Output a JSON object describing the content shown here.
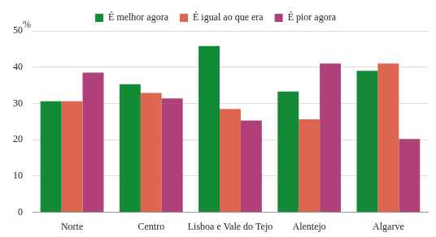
{
  "chart_data": {
    "type": "bar",
    "y_label": "%",
    "categories": [
      "Norte",
      "Centro",
      "Lisboa e Vale do Tejo",
      "Alentejo",
      "Algarve"
    ],
    "series": [
      {
        "name": "É melhor agora",
        "color": "#138a36",
        "values": [
          30.6,
          35.3,
          45.8,
          33.3,
          39.0
        ]
      },
      {
        "name": "É igual ao que era",
        "color": "#dd6650",
        "values": [
          30.6,
          32.9,
          28.5,
          25.6,
          41.0
        ]
      },
      {
        "name": "É pior agora",
        "color": "#b0407a",
        "values": [
          38.5,
          31.4,
          25.3,
          41.0,
          20.2
        ]
      }
    ],
    "ylim": [
      0,
      50
    ],
    "yticks": [
      0,
      10,
      20,
      30,
      40,
      50
    ],
    "grid": true,
    "legend": "top"
  }
}
